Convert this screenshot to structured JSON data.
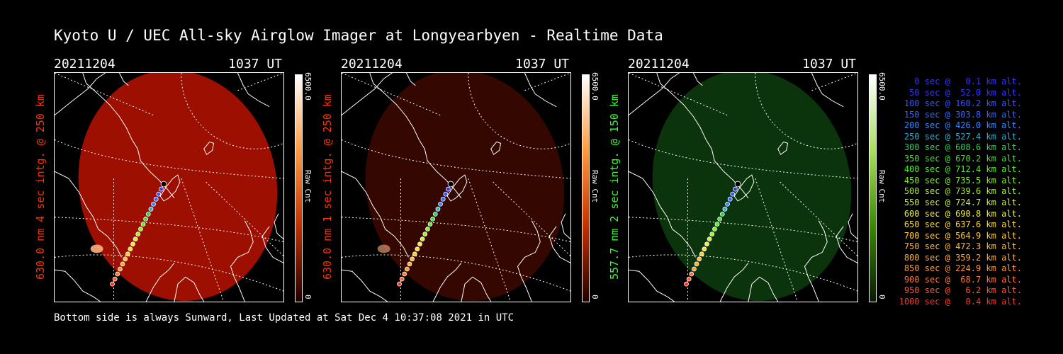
{
  "title": "Kyoto U / UEC All-sky Airglow Imager at Longyearbyen - Realtime Data",
  "footer": "Bottom side is always Sunward, Last Updated at Sat Dec  4 10:37:08 2021 in UTC",
  "panels": [
    {
      "date": "20211204",
      "time": "1037 UT",
      "label": "630.0 nm 4 sec intg. @ 250 km",
      "label_color": "#ff3300",
      "cbar_max": "6500.0",
      "cbar_min": "0",
      "cbar_unit": "Raw Cnt",
      "cbar_colors": [
        "#ffffff",
        "#ff9a40",
        "#c33000",
        "#220000"
      ],
      "image_color": "#b81200",
      "image_opacity": 0.85,
      "emission_spot": true
    },
    {
      "date": "20211204",
      "time": "1037 UT",
      "label": "630.0 nm 1 sec intg. @ 250 km",
      "label_color": "#ff3300",
      "cbar_max": "6500.0",
      "cbar_min": "0",
      "cbar_unit": "Raw Cnt",
      "cbar_colors": [
        "#ffffff",
        "#ff9a40",
        "#c33000",
        "#220000"
      ],
      "image_color": "#3a0800",
      "image_opacity": 0.9,
      "emission_spot": true
    },
    {
      "date": "20211204",
      "time": "1037 UT",
      "label": "557.7 nm 2 sec intg. @ 150 km",
      "label_color": "#33ff33",
      "cbar_max": "6500.0",
      "cbar_min": "0",
      "cbar_unit": "Raw Cnt",
      "cbar_colors": [
        "#ffffff",
        "#a8e05a",
        "#3a8a00",
        "#0a1800"
      ],
      "image_color": "#0d3a0d",
      "image_opacity": 0.9,
      "emission_spot": false
    }
  ],
  "legend": [
    {
      "text": "0 sec @   0.1 km alt.",
      "color": "#3333ff"
    },
    {
      "text": "50 sec @  52.0 km alt.",
      "color": "#3333ff"
    },
    {
      "text": "100 sec @ 160.2 km alt.",
      "color": "#3355ff"
    },
    {
      "text": "150 sec @ 303.8 km alt.",
      "color": "#3366ff"
    },
    {
      "text": "200 sec @ 426.0 km alt.",
      "color": "#3388ff"
    },
    {
      "text": "250 sec @ 527.4 km alt.",
      "color": "#33aacc"
    },
    {
      "text": "300 sec @ 608.6 km alt.",
      "color": "#33cc66"
    },
    {
      "text": "350 sec @ 670.2 km alt.",
      "color": "#44dd33"
    },
    {
      "text": "400 sec @ 712.4 km alt.",
      "color": "#55ee33"
    },
    {
      "text": "450 sec @ 735.5 km alt.",
      "color": "#88ee33"
    },
    {
      "text": "500 sec @ 739.6 km alt.",
      "color": "#aaee33"
    },
    {
      "text": "550 sec @ 724.7 km alt.",
      "color": "#ccee33"
    },
    {
      "text": "600 sec @ 690.8 km alt.",
      "color": "#eeee33"
    },
    {
      "text": "650 sec @ 637.6 km alt.",
      "color": "#ffdd33"
    },
    {
      "text": "700 sec @ 564.9 km alt.",
      "color": "#ffcc33"
    },
    {
      "text": "750 sec @ 472.3 km alt.",
      "color": "#ffbb33"
    },
    {
      "text": "800 sec @ 359.2 km alt.",
      "color": "#ffaa33"
    },
    {
      "text": "850 sec @ 224.9 km alt.",
      "color": "#ff9933"
    },
    {
      "text": "900 sec @  68.7 km alt.",
      "color": "#ff7733"
    },
    {
      "text": "950 sec @   6.2 km alt.",
      "color": "#ff5533"
    },
    {
      "text": "1000 sec @   0.4 km alt.",
      "color": "#ff3322"
    }
  ]
}
